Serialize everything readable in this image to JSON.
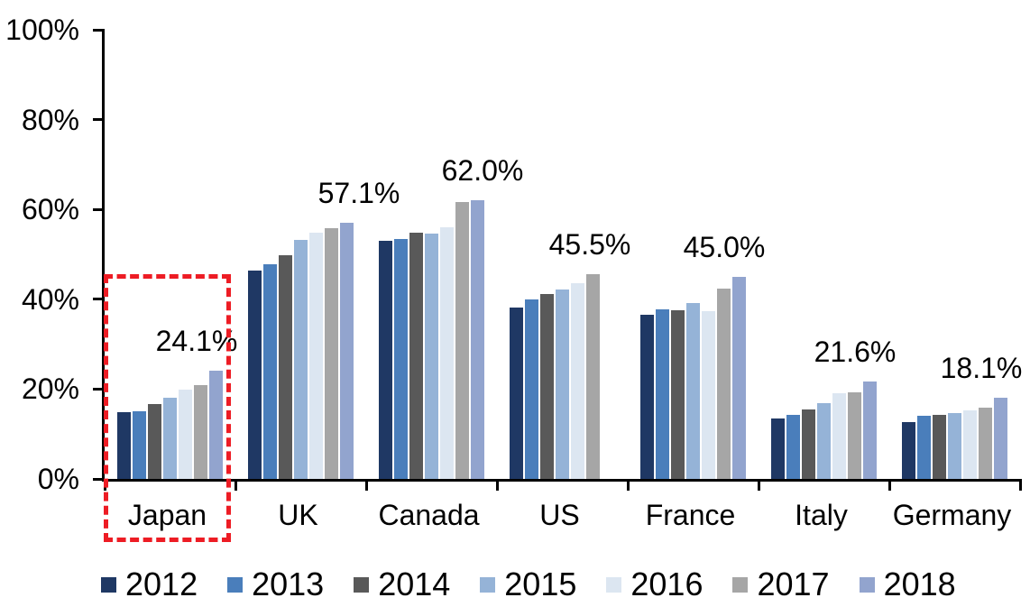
{
  "chart_data": {
    "type": "bar",
    "title": "",
    "categories": [
      "Japan",
      "UK",
      "Canada",
      "US",
      "France",
      "Italy",
      "Germany"
    ],
    "series": [
      {
        "name": "2012",
        "color": "#1F3864",
        "values": [
          14.9,
          46.4,
          53.0,
          38.2,
          36.5,
          13.4,
          12.6
        ]
      },
      {
        "name": "2013",
        "color": "#4A7EBB",
        "values": [
          15.0,
          47.8,
          53.4,
          40.0,
          37.7,
          14.2,
          14.1
        ]
      },
      {
        "name": "2014",
        "color": "#595959",
        "values": [
          16.6,
          49.9,
          54.9,
          41.2,
          37.6,
          15.4,
          14.3
        ]
      },
      {
        "name": "2015",
        "color": "#95B3D7",
        "values": [
          18.0,
          53.2,
          54.6,
          42.2,
          39.2,
          16.8,
          14.6
        ]
      },
      {
        "name": "2016",
        "color": "#DCE6F1",
        "values": [
          19.9,
          54.8,
          56.0,
          43.5,
          37.3,
          19.0,
          15.2
        ]
      },
      {
        "name": "2017",
        "color": "#A6A6A6",
        "values": [
          20.9,
          55.8,
          61.6,
          45.5,
          42.3,
          19.2,
          15.8
        ]
      },
      {
        "name": "2018",
        "color": "#92A4CE",
        "values": [
          24.1,
          57.1,
          62.0,
          null,
          45.0,
          21.6,
          18.1
        ]
      }
    ],
    "data_labels": [
      "24.1%",
      "57.1%",
      "62.0%",
      "45.5%",
      "45.0%",
      "21.6%",
      "18.1%"
    ],
    "y_axis": {
      "min": 0,
      "max": 100,
      "tick_labels": [
        "100%",
        "80%",
        "60%",
        "40%",
        "20%",
        "0%"
      ],
      "tick_values": [
        100,
        80,
        60,
        40,
        20,
        0
      ],
      "unit": "%"
    },
    "grid": "off",
    "legend_position": "bottom",
    "highlight": {
      "category": "Japan",
      "style": "dashed-box",
      "color": "#ED1C24"
    }
  }
}
